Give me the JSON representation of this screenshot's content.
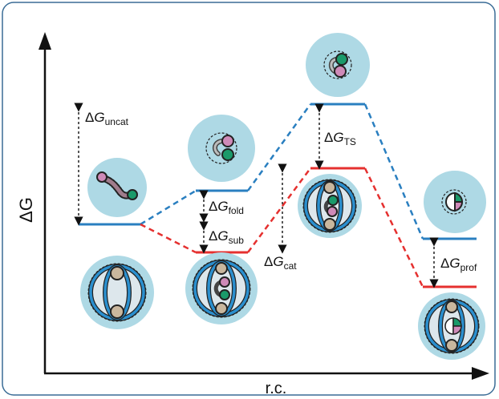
{
  "axes": {
    "y_label": "ΔG",
    "x_label": "r.c."
  },
  "labels": {
    "uncat": {
      "delta": "Δ",
      "g": "G",
      "sub": "uncat"
    },
    "fold": {
      "delta": "Δ",
      "g": "G",
      "sub": "fold"
    },
    "sub": {
      "delta": "Δ",
      "g": "G",
      "sub": "sub"
    },
    "cat": {
      "delta": "Δ",
      "g": "G",
      "sub": "cat"
    },
    "ts": {
      "delta": "Δ",
      "g": "G",
      "sub": "TS"
    },
    "prof": {
      "delta": "Δ",
      "g": "G",
      "sub": "prof"
    }
  },
  "colors": {
    "uncatalyzed_path": "#2a7fc0",
    "catalyzed_path": "#e5302f",
    "bubble": "#aed9e5",
    "ring": "#2b8fce",
    "pink": "#cf8ab8",
    "green": "#1a9a6a",
    "tan": "#c9b79e",
    "frame": "#3a6c96"
  }
}
